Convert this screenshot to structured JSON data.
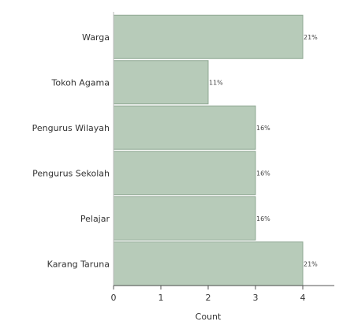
{
  "chart_data": {
    "type": "bar",
    "orientation": "horizontal",
    "categories": [
      "Warga",
      "Tokoh Agama",
      "Pengurus Wilayah",
      "Pengurus Sekolah",
      "Pelajar",
      "Karang Taruna"
    ],
    "values": [
      4,
      2,
      3,
      3,
      3,
      4
    ],
    "data_labels": [
      "21%",
      "11%",
      "16%",
      "16%",
      "16%",
      "21%"
    ],
    "xlabel": "Count",
    "ylabel": "",
    "title": "",
    "xlim": [
      0,
      4.8
    ],
    "xticks": [
      0,
      1,
      2,
      3,
      4
    ],
    "xtick_labels": [
      "0",
      "1",
      "2",
      "3",
      "4"
    ],
    "grid": false,
    "bar_color": "#b7cbb9",
    "bar_edge_color": "#8fa893"
  }
}
